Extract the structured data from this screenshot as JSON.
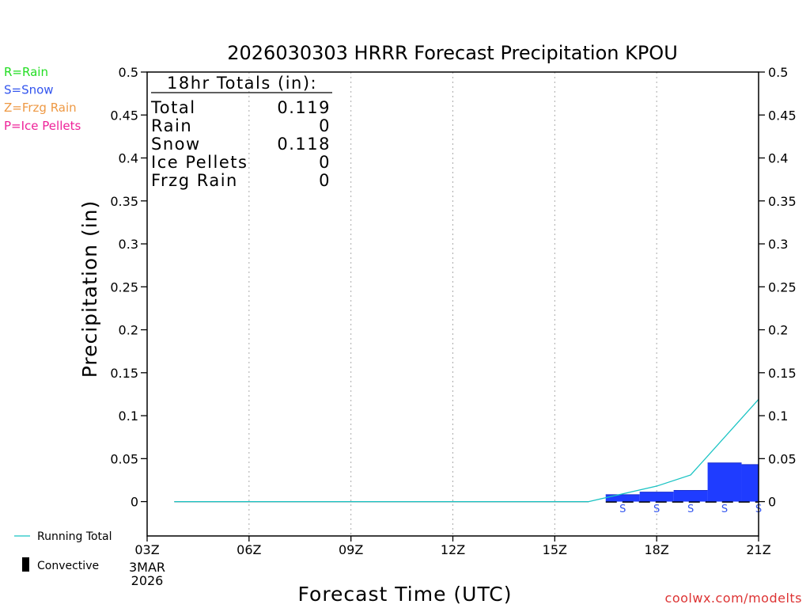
{
  "chart_data": {
    "type": "bar",
    "title": "2026030303 HRRR Forecast Precipitation KPOU",
    "xlabel": "Forecast Time (UTC)",
    "ylabel": "Precipitation (in)",
    "ylim": [
      -0.04,
      0.5
    ],
    "yticks": [
      0,
      0.05,
      0.1,
      0.15,
      0.2,
      0.25,
      0.3,
      0.35,
      0.4,
      0.45,
      0.5
    ],
    "ytick_labels": [
      "0",
      "0.05",
      "0.1",
      "0.15",
      "0.2",
      "0.25",
      "0.3",
      "0.35",
      "0.4",
      "0.45",
      "0.5"
    ],
    "xlim_hours": [
      3,
      21
    ],
    "xticks": [
      {
        "hour": 3,
        "label": "03Z"
      },
      {
        "hour": 6,
        "label": "06Z"
      },
      {
        "hour": 9,
        "label": "09Z"
      },
      {
        "hour": 12,
        "label": "12Z"
      },
      {
        "hour": 15,
        "label": "15Z"
      },
      {
        "hour": 18,
        "label": "18Z"
      },
      {
        "hour": 21,
        "label": "21Z"
      }
    ],
    "date_label_line1": "3MAR",
    "date_label_line2": "2026",
    "hourly_bars": {
      "name": "Hourly precipitation",
      "color": "#1f3cff",
      "bars": [
        {
          "start": 16.5,
          "end": 17.5,
          "value": 0.008,
          "ptype": "S"
        },
        {
          "start": 17.5,
          "end": 18.5,
          "value": 0.011,
          "ptype": "S"
        },
        {
          "start": 18.5,
          "end": 19.5,
          "value": 0.013,
          "ptype": "S"
        },
        {
          "start": 19.5,
          "end": 20.5,
          "value": 0.045,
          "ptype": "S"
        },
        {
          "start": 20.5,
          "end": 21.0,
          "value": 0.043,
          "ptype": "S"
        }
      ]
    },
    "running_total": {
      "name": "Running Total",
      "color": "#19c3c3",
      "x": [
        3.8,
        16.0,
        18.0,
        19.0,
        21.0
      ],
      "y": [
        0,
        0,
        0.018,
        0.031,
        0.119
      ]
    },
    "ptype_markers": [
      {
        "hour": 17,
        "label": "S"
      },
      {
        "hour": 18,
        "label": "S"
      },
      {
        "hour": 19,
        "label": "S"
      },
      {
        "hour": 20,
        "label": "S"
      },
      {
        "hour": 21,
        "label": "S"
      }
    ],
    "totals_box": {
      "header": "18hr Totals (in):",
      "rows": [
        {
          "label": "Total",
          "value": "0.119"
        },
        {
          "label": "Rain",
          "value": "0"
        },
        {
          "label": "Snow",
          "value": "0.118"
        },
        {
          "label": "Ice Pellets",
          "value": "0"
        },
        {
          "label": "Frzg Rain",
          "value": "0"
        }
      ]
    },
    "ptype_legend": [
      {
        "text": "R=Rain",
        "color": "#22dd22"
      },
      {
        "text": "S=Snow",
        "color": "#3355ee"
      },
      {
        "text": "Z=Frzg Rain",
        "color": "#ee9944"
      },
      {
        "text": "P=Ice Pellets",
        "color": "#ee2299"
      }
    ],
    "series_legend": {
      "running_total_label": "Running Total",
      "convective_label": "Convective"
    },
    "credit": "coolwx.com/modelts",
    "colors": {
      "axis": "#000000",
      "grid": "#aaaaaa",
      "ptype_marker": "#3355ee",
      "credit": "#dd3333"
    }
  }
}
